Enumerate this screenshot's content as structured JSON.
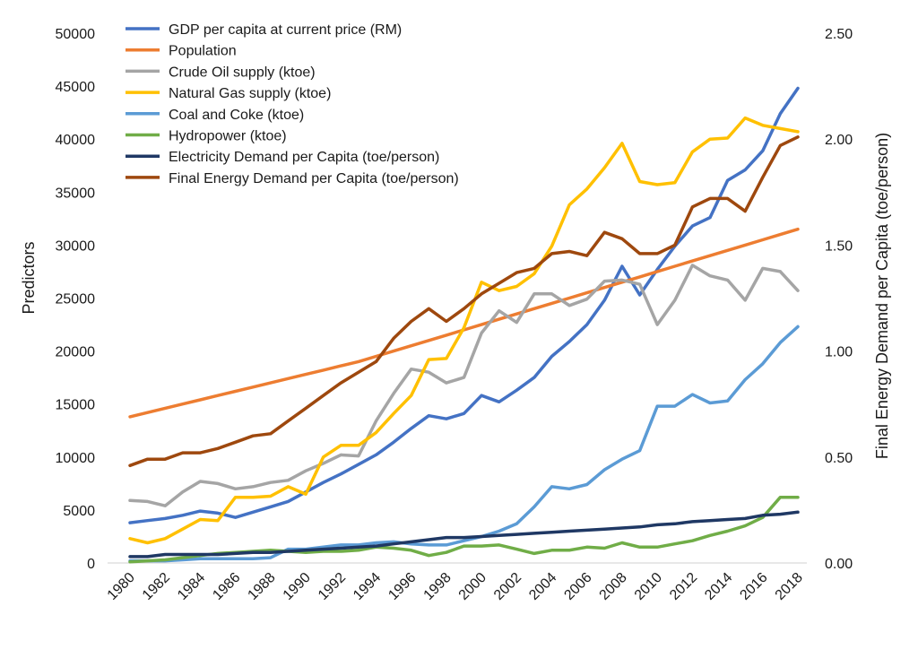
{
  "chart_data": {
    "type": "line",
    "title": "",
    "xlabel": "",
    "ylabel": "Predictors",
    "y2label": "Final Energy Demand per Capita (toe/person)",
    "ylim": [
      0,
      50000
    ],
    "y2lim": [
      0,
      2.5
    ],
    "xlim": [
      1980,
      2018
    ],
    "y_ticks": [
      "0",
      "5000",
      "10000",
      "15000",
      "20000",
      "25000",
      "30000",
      "35000",
      "40000",
      "45000",
      "50000"
    ],
    "y2_ticks": [
      "0.00",
      "0.50",
      "1.00",
      "1.50",
      "2.00",
      "2.50"
    ],
    "x_ticks": [
      "1980",
      "1982",
      "1984",
      "1986",
      "1988",
      "1990",
      "1992",
      "1994",
      "1996",
      "1998",
      "2000",
      "2002",
      "2004",
      "2006",
      "2008",
      "2010",
      "2012",
      "2014",
      "2016",
      "2018"
    ],
    "grid": false,
    "legend_position": "top-left",
    "x": [
      1980,
      1981,
      1982,
      1983,
      1984,
      1985,
      1986,
      1987,
      1988,
      1989,
      1990,
      1991,
      1992,
      1993,
      1994,
      1995,
      1996,
      1997,
      1998,
      1999,
      2000,
      2001,
      2002,
      2003,
      2004,
      2005,
      2006,
      2007,
      2008,
      2009,
      2010,
      2011,
      2012,
      2013,
      2014,
      2015,
      2016,
      2017,
      2018
    ],
    "series": [
      {
        "name": "GDP per capita at current price (RM)",
        "color": "#4472C4",
        "axis": "left",
        "values": [
          3800,
          4000,
          4200,
          4500,
          4900,
          4700,
          4300,
          4800,
          5300,
          5800,
          6700,
          7600,
          8400,
          9300,
          10200,
          11400,
          12700,
          13900,
          13600,
          14100,
          15800,
          15200,
          16300,
          17500,
          19500,
          20900,
          22500,
          24800,
          28000,
          25300,
          27700,
          29900,
          31800,
          32600,
          36100,
          37100,
          38900,
          42400,
          44800
        ]
      },
      {
        "name": "Population",
        "color": "#ED7D31",
        "axis": "left",
        "values": [
          13800,
          14200,
          14600,
          15000,
          15400,
          15800,
          16200,
          16600,
          17000,
          17400,
          17800,
          18200,
          18600,
          19000,
          19500,
          20000,
          20500,
          21000,
          21500,
          22000,
          22500,
          23000,
          23500,
          24000,
          24500,
          25000,
          25500,
          26000,
          26500,
          27000,
          27500,
          28000,
          28500,
          29000,
          29500,
          30000,
          30500,
          31000,
          31500
        ]
      },
      {
        "name": "Crude Oil supply (ktoe)",
        "color": "#A5A5A5",
        "axis": "left",
        "values": [
          5900,
          5800,
          5400,
          6700,
          7700,
          7500,
          7000,
          7200,
          7600,
          7800,
          8700,
          9400,
          10200,
          10100,
          13400,
          16000,
          18300,
          18000,
          17000,
          17500,
          21700,
          23800,
          22700,
          25400,
          25400,
          24300,
          24900,
          26600,
          26700,
          26300,
          22500,
          24800,
          28100,
          27100,
          26700,
          24800,
          27800,
          27500,
          25700
        ]
      },
      {
        "name": "Natural Gas supply (ktoe)",
        "color": "#FFC000",
        "axis": "left",
        "values": [
          2300,
          1900,
          2300,
          3200,
          4100,
          4000,
          6200,
          6200,
          6300,
          7200,
          6500,
          10000,
          11100,
          11100,
          12300,
          14100,
          15800,
          19200,
          19300,
          22200,
          26500,
          25700,
          26100,
          27300,
          29900,
          33800,
          35300,
          37300,
          39600,
          36000,
          35700,
          35900,
          38800,
          40000,
          40100,
          42000,
          41300,
          41000,
          40700
        ]
      },
      {
        "name": "Coal and Coke (ktoe)",
        "color": "#5B9BD5",
        "axis": "left",
        "values": [
          200,
          200,
          200,
          300,
          400,
          400,
          400,
          400,
          500,
          1300,
          1300,
          1500,
          1700,
          1700,
          1900,
          2000,
          1800,
          1700,
          1700,
          2100,
          2500,
          3000,
          3700,
          5300,
          7200,
          7000,
          7400,
          8800,
          9800,
          10600,
          14800,
          14800,
          15900,
          15100,
          15300,
          17300,
          18800,
          20800,
          22300
        ]
      },
      {
        "name": "Hydropower (ktoe)",
        "color": "#70AD47",
        "axis": "left",
        "values": [
          100,
          200,
          300,
          500,
          700,
          900,
          1000,
          1100,
          1200,
          1100,
          1000,
          1100,
          1100,
          1200,
          1500,
          1400,
          1200,
          700,
          1000,
          1600,
          1600,
          1700,
          1300,
          900,
          1200,
          1200,
          1500,
          1400,
          1900,
          1500,
          1500,
          1800,
          2100,
          2600,
          3000,
          3500,
          4300,
          6200,
          6200
        ]
      },
      {
        "name": "Electricity Demand per Capita (toe/person)",
        "color": "#1F3864",
        "axis": "right",
        "values": [
          0.03,
          0.03,
          0.04,
          0.04,
          0.04,
          0.04,
          0.045,
          0.05,
          0.05,
          0.055,
          0.06,
          0.065,
          0.07,
          0.075,
          0.08,
          0.09,
          0.1,
          0.11,
          0.12,
          0.12,
          0.125,
          0.13,
          0.135,
          0.14,
          0.145,
          0.15,
          0.155,
          0.16,
          0.165,
          0.17,
          0.18,
          0.185,
          0.195,
          0.2,
          0.205,
          0.21,
          0.225,
          0.23,
          0.24
        ]
      },
      {
        "name": "Final Energy Demand per Capita (toe/person)",
        "color": "#9E480E",
        "axis": "right",
        "values": [
          0.46,
          0.49,
          0.49,
          0.52,
          0.52,
          0.54,
          0.57,
          0.6,
          0.61,
          0.67,
          0.73,
          0.79,
          0.85,
          0.9,
          0.95,
          1.06,
          1.14,
          1.2,
          1.14,
          1.2,
          1.27,
          1.32,
          1.37,
          1.39,
          1.46,
          1.47,
          1.45,
          1.56,
          1.53,
          1.46,
          1.46,
          1.5,
          1.68,
          1.72,
          1.72,
          1.66,
          1.82,
          1.97,
          2.01
        ]
      }
    ]
  }
}
